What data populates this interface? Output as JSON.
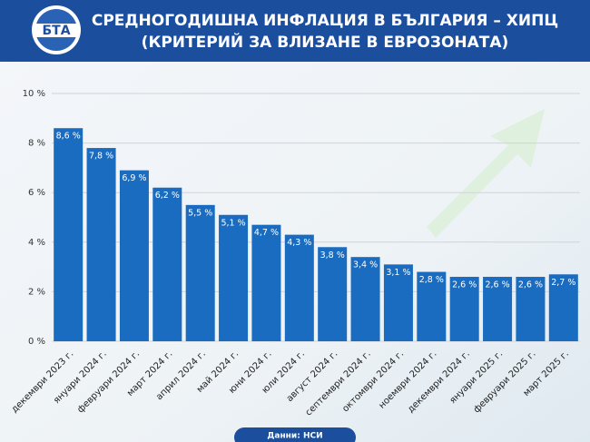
{
  "logo": "БТА",
  "source": "Данни: НСИ",
  "chart_data": {
    "type": "bar",
    "title": "СРЕДНОГОДИШНА ИНФЛАЦИЯ В БЪЛГАРИЯ – ХИПЦ",
    "subtitle": "(КРИТЕРИЙ ЗА ВЛИЗАНЕ В ЕВРОЗОНАТА)",
    "categories": [
      "декември 2023 г.",
      "януари 2024 г.",
      "февруари 2024 г.",
      "март 2024 г.",
      "април 2024 г.",
      "май 2024 г.",
      "юни 2024 г.",
      "юли 2024 г.",
      "август 2024 г.",
      "септември 2024 г.",
      "октомври 2024 г.",
      "ноември 2024 г.",
      "декември 2024 г.",
      "януари 2025 г.",
      "февруари 2025 г.",
      "март 2025 г."
    ],
    "values": [
      8.6,
      7.8,
      6.9,
      6.2,
      5.5,
      5.1,
      4.7,
      4.3,
      3.8,
      3.4,
      3.1,
      2.8,
      2.6,
      2.6,
      2.6,
      2.7
    ],
    "value_labels": [
      "8,6 %",
      "7,8 %",
      "6,9 %",
      "6,2 %",
      "5,5 %",
      "5,1 %",
      "4,7 %",
      "4,3 %",
      "3,8 %",
      "3,4 %",
      "3,1 %",
      "2,8 %",
      "2,6 %",
      "2,6 %",
      "2,6 %",
      "2,7 %"
    ],
    "color": "#1a6cc0",
    "ylim": [
      0,
      10
    ],
    "yticks": [
      {
        "value": 0,
        "label": "0 %"
      },
      {
        "value": 2,
        "label": "2 %"
      },
      {
        "value": 4,
        "label": "4 %"
      },
      {
        "value": 6,
        "label": "6 %"
      },
      {
        "value": 8,
        "label": "8 %"
      },
      {
        "value": 10,
        "label": "10 %"
      }
    ],
    "grid": true
  }
}
